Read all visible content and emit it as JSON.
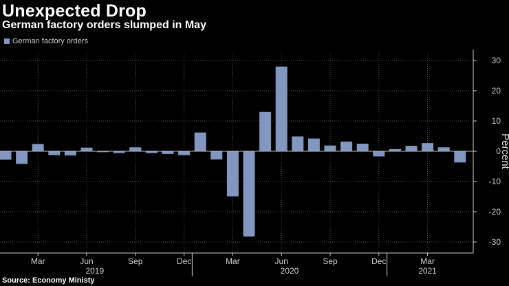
{
  "title": "Unexpected Drop",
  "subtitle": "German factory orders slumped in May",
  "source": "Source: Economy Ministy",
  "colors": {
    "bar": "#8197bf",
    "background": "#000000",
    "grid": "#555555"
  },
  "chart_data": {
    "type": "bar",
    "title": "Unexpected Drop",
    "subtitle": "German factory orders slumped in May",
    "xlabel": "",
    "ylabel": "Percent",
    "ylim": [
      -33,
      33
    ],
    "yticks": [
      30,
      20,
      10,
      0,
      -10,
      -20,
      -30
    ],
    "legend": "top-left",
    "grid": true,
    "categories": [
      "2019-01",
      "2019-02",
      "2019-03",
      "2019-04",
      "2019-05",
      "2019-06",
      "2019-07",
      "2019-08",
      "2019-09",
      "2019-10",
      "2019-11",
      "2019-12",
      "2020-01",
      "2020-02",
      "2020-03",
      "2020-04",
      "2020-05",
      "2020-06",
      "2020-07",
      "2020-08",
      "2020-09",
      "2020-10",
      "2020-11",
      "2020-12",
      "2021-01",
      "2021-02",
      "2021-03",
      "2021-04",
      "2021-05"
    ],
    "month_labels": [
      {
        "index": 2,
        "label": "Mar"
      },
      {
        "index": 5,
        "label": "Jun"
      },
      {
        "index": 8,
        "label": "Sep"
      },
      {
        "index": 11,
        "label": "Dec"
      },
      {
        "index": 14,
        "label": "Mar"
      },
      {
        "index": 17,
        "label": "Jun"
      },
      {
        "index": 20,
        "label": "Sep"
      },
      {
        "index": 23,
        "label": "Dec"
      },
      {
        "index": 26,
        "label": "Mar"
      }
    ],
    "year_labels": [
      {
        "label": "2019",
        "start": 0,
        "end": 11
      },
      {
        "label": "2020",
        "start": 12,
        "end": 23
      },
      {
        "label": "2021",
        "start": 24,
        "end": 28
      }
    ],
    "series": [
      {
        "name": "German factory orders",
        "values": [
          -2.8,
          -4.2,
          2.4,
          -1.3,
          -1.4,
          1.2,
          -0.3,
          -0.6,
          1.3,
          -0.6,
          -0.9,
          -1.3,
          6.2,
          -2.7,
          -14.9,
          -28.2,
          13.0,
          28.0,
          4.9,
          4.2,
          1.9,
          3.2,
          2.5,
          -1.7,
          0.7,
          1.8,
          2.7,
          1.3,
          -3.7
        ]
      }
    ]
  }
}
